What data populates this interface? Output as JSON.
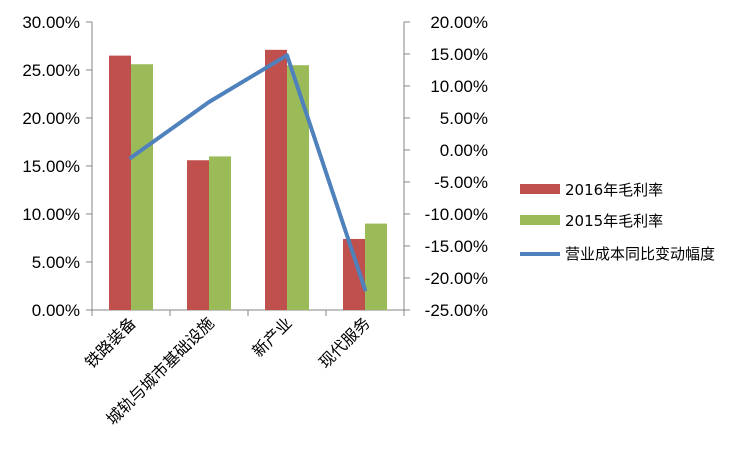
{
  "chart_data": {
    "type": "bar",
    "categories": [
      "铁路装备",
      "城轨与城市基础设施",
      "新产业",
      "现代服务"
    ],
    "series": [
      {
        "name": "2016年毛利率",
        "kind": "bar",
        "axis": "left",
        "color": "#c0504d",
        "values": [
          26.5,
          15.6,
          27.1,
          7.4
        ]
      },
      {
        "name": "2015年毛利率",
        "kind": "bar",
        "axis": "left",
        "color": "#9bbb59",
        "values": [
          25.6,
          16.0,
          25.5,
          9.0
        ]
      },
      {
        "name": "营业成本同比变动幅度",
        "kind": "line",
        "axis": "right",
        "color": "#4f81bd",
        "values": [
          -1.2,
          7.5,
          14.8,
          -21.8
        ]
      }
    ],
    "y_left": {
      "ylim": [
        0,
        30
      ],
      "ticks": [
        "0.00%",
        "5.00%",
        "10.00%",
        "15.00%",
        "20.00%",
        "25.00%",
        "30.00%"
      ]
    },
    "y_right": {
      "ylim": [
        -25,
        20
      ],
      "ticks": [
        "-25.00%",
        "-20.00%",
        "-15.00%",
        "-10.00%",
        "-5.00%",
        "0.00%",
        "5.00%",
        "10.00%",
        "15.00%",
        "20.00%"
      ]
    },
    "grid": false,
    "legend": "right"
  }
}
